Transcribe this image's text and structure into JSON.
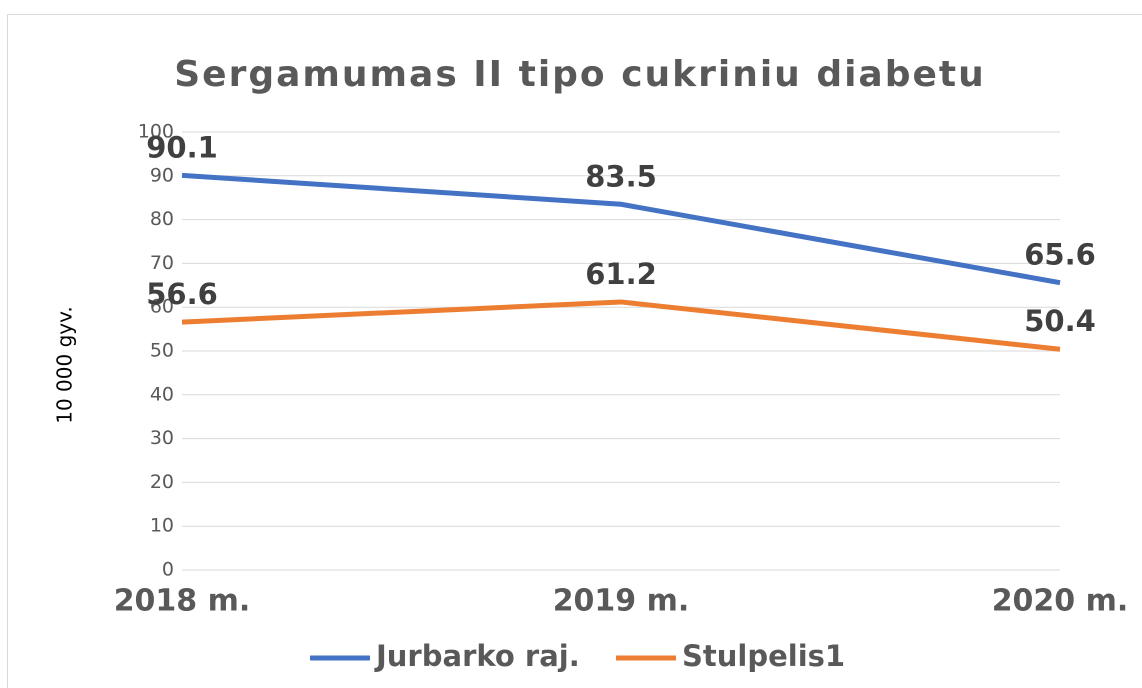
{
  "chart_data": {
    "type": "line",
    "title": "Sergamumas II tipo cukriniu diabetu",
    "y_label": "10 000 gyv.",
    "categories": [
      "2018 m.",
      "2019 m.",
      "2020 m."
    ],
    "series": [
      {
        "name": "Jurbarko raj.",
        "color": "#4472c4",
        "values": [
          90.1,
          83.5,
          65.6
        ]
      },
      {
        "name": "Stulpelis1",
        "color": "#ed7d31",
        "values": [
          56.6,
          61.2,
          50.4
        ]
      }
    ],
    "ylim": [
      0,
      100
    ],
    "yticks": [
      0,
      10,
      20,
      30,
      40,
      50,
      60,
      70,
      80,
      90,
      100
    ],
    "grid": true,
    "legend": "bottom"
  }
}
